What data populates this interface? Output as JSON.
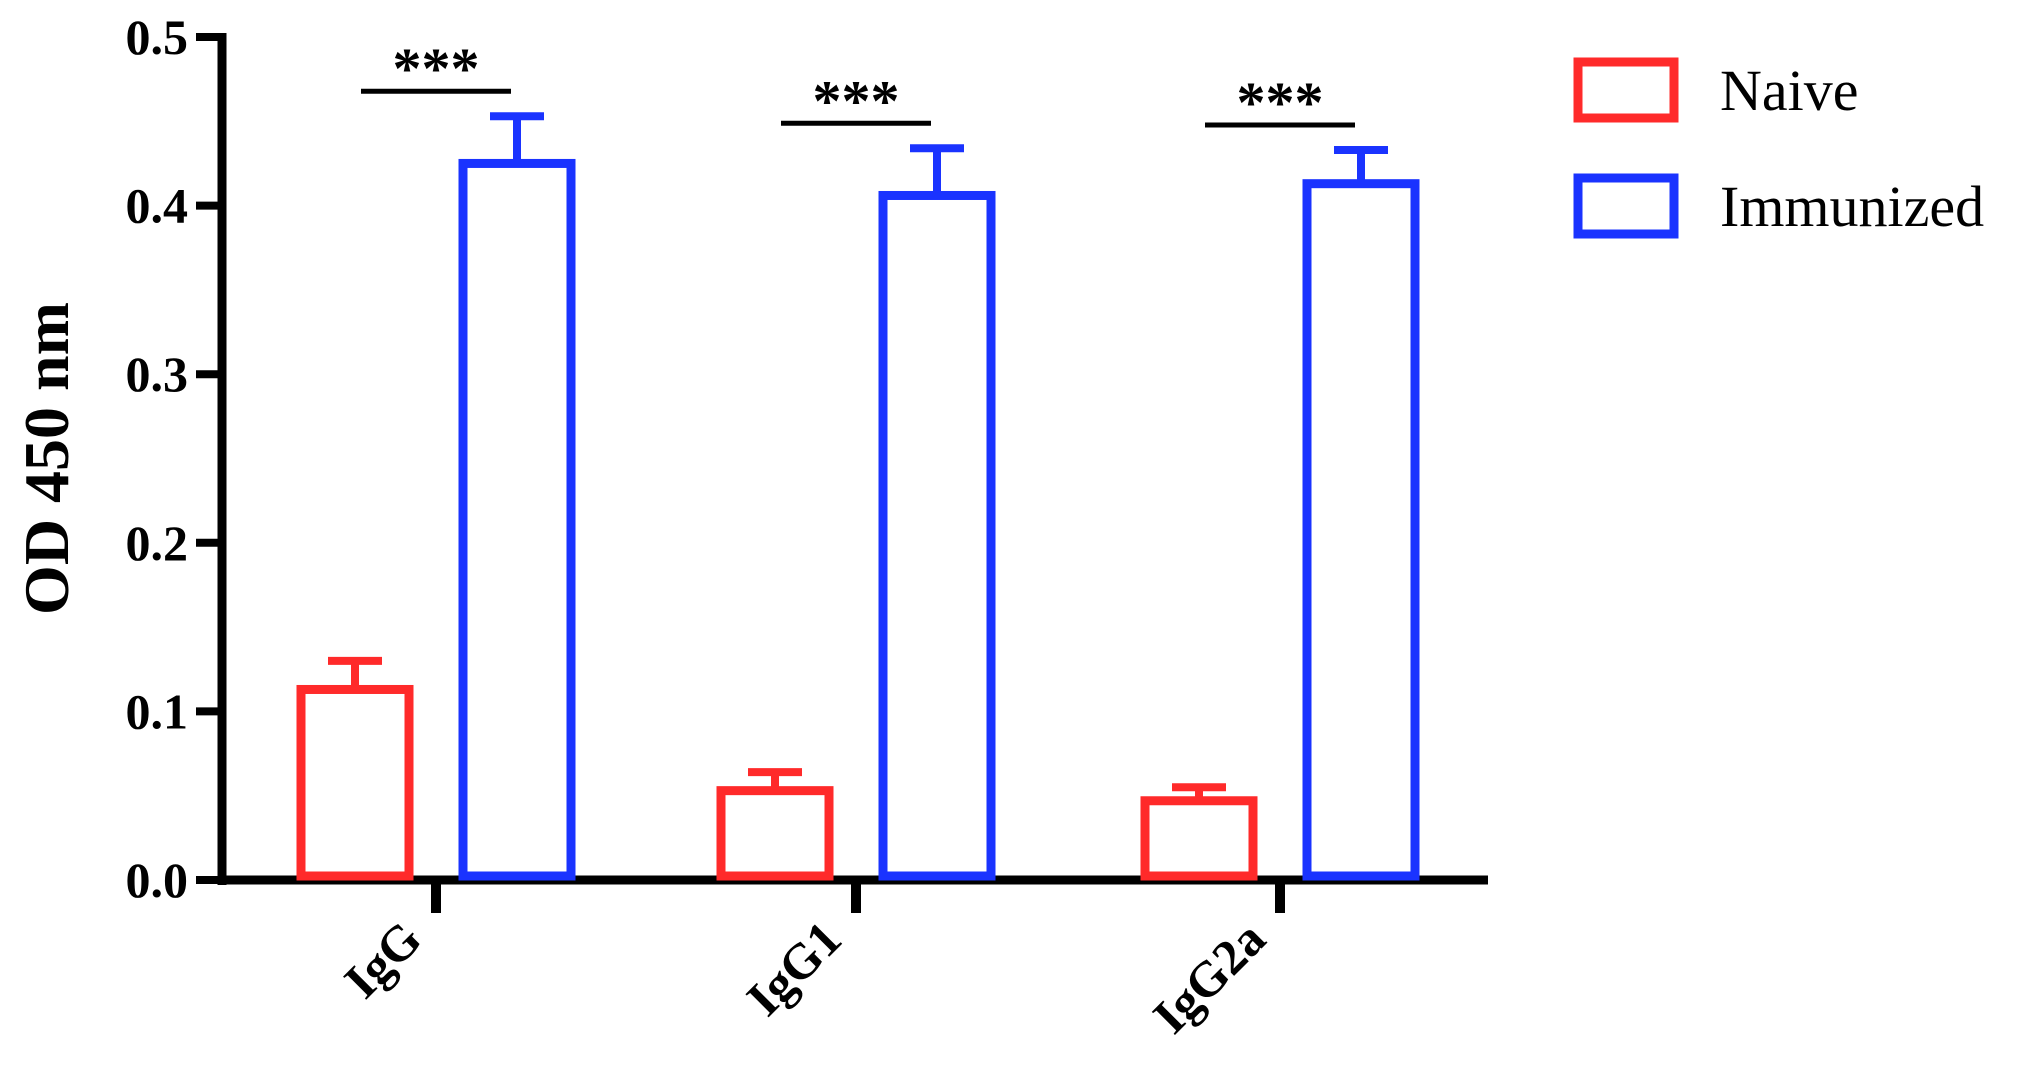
{
  "chart_data": {
    "type": "bar",
    "title": "",
    "xlabel": "",
    "ylabel": "OD 450 nm",
    "ylim": [
      0,
      0.5
    ],
    "yticks": [
      "0.0",
      "0.1",
      "0.2",
      "0.3",
      "0.4",
      "0.5"
    ],
    "categories": [
      "IgG",
      "IgG1",
      "IgG2a"
    ],
    "series": [
      {
        "name": "Naive",
        "values": [
          0.113,
          0.053,
          0.047
        ],
        "errors": [
          0.017,
          0.011,
          0.008
        ],
        "color": "#ff2a2a"
      },
      {
        "name": "Immunized",
        "values": [
          0.425,
          0.406,
          0.413
        ],
        "errors": [
          0.028,
          0.028,
          0.02
        ],
        "color": "#1a33ff"
      }
    ],
    "annotations": [
      "***",
      "***",
      "***"
    ],
    "legend_position": "top-right",
    "grid": false
  }
}
